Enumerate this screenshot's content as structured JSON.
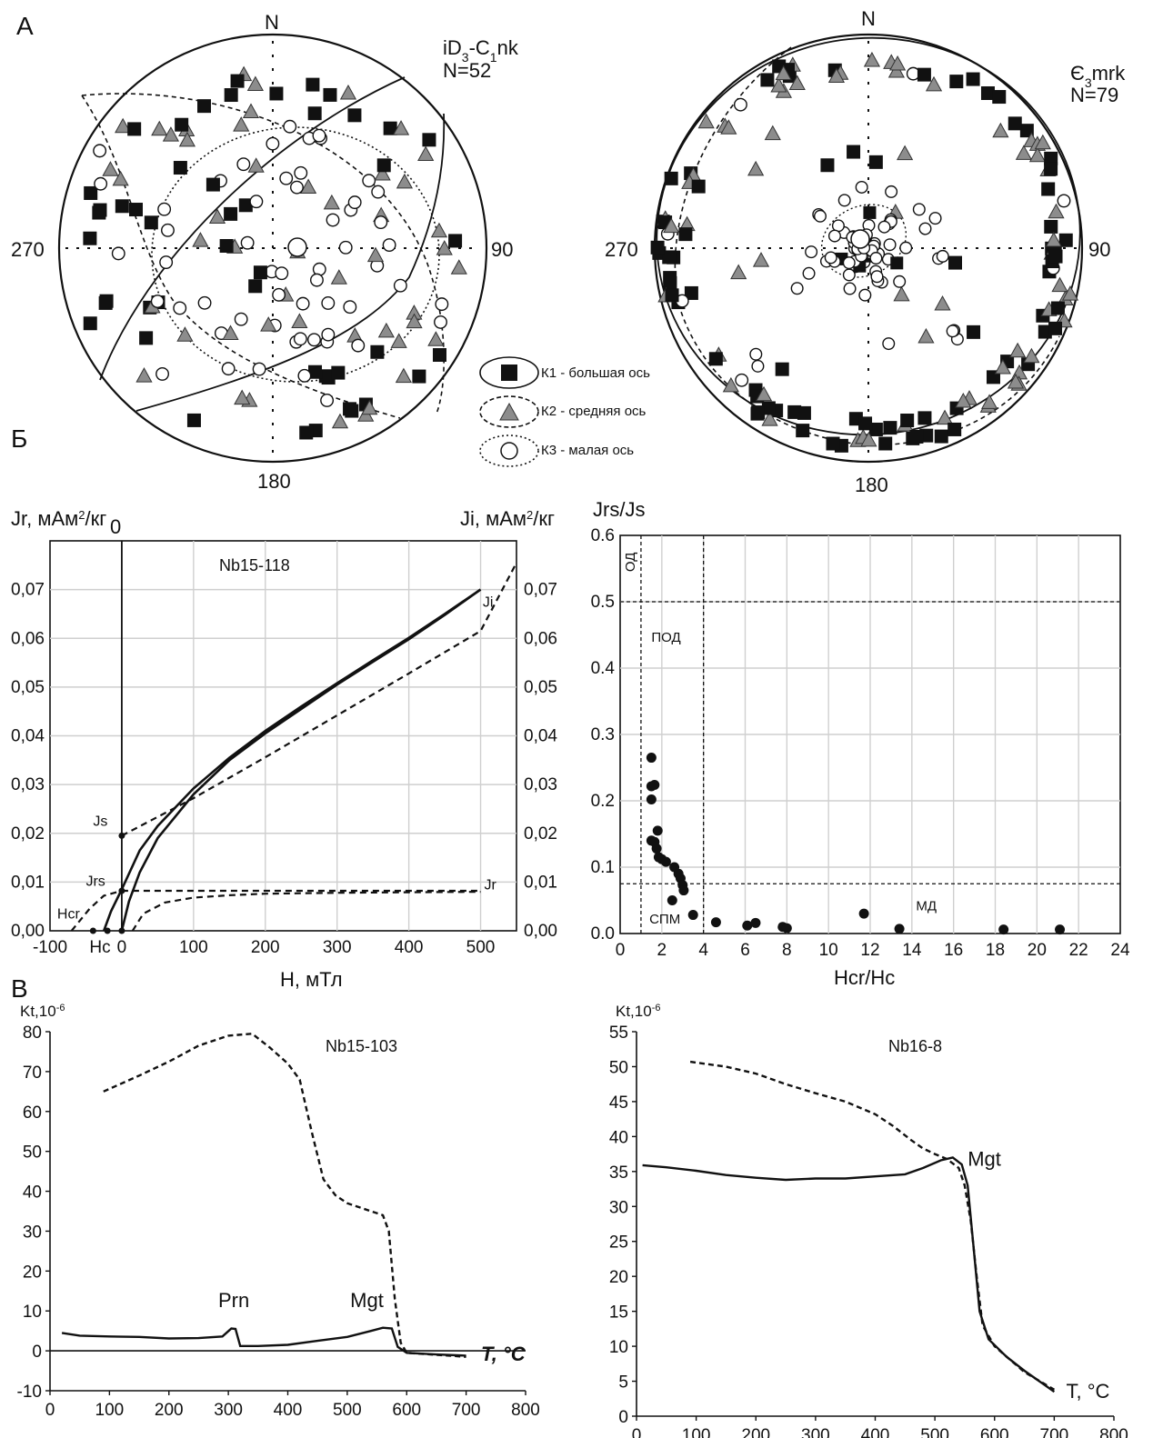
{
  "section_labels": {
    "a": "А",
    "b": "Б",
    "c": "В"
  },
  "stereonets": {
    "north": "N",
    "deg_90": "90",
    "deg_180": "180",
    "deg_270": "270",
    "left": {
      "unit_html": "iD<tspan baseline-shift='sub' font-size='14'>3</tspan>-C<tspan baseline-shift='sub' font-size='14'>1</tspan>nk",
      "unit": "iD3-C1nk",
      "n": "N=52"
    },
    "right": {
      "unit_html": "Є<tspan baseline-shift='sub' font-size='14'>3</tspan>mrk",
      "unit": "Є3mrk",
      "n": "N=79"
    },
    "legend": [
      {
        "label": "К1 - большая ось",
        "symbol": "square",
        "ellipse": "solid"
      },
      {
        "label": "К2 - средняя ось",
        "symbol": "triangle",
        "ellipse": "dashed"
      },
      {
        "label": "К3 - малая ось",
        "symbol": "circle",
        "ellipse": "dotted"
      }
    ]
  },
  "chart_data": [
    {
      "type": "line",
      "sample": "Nb15-118",
      "ylabel_left": "Jr, мАм²/кг",
      "ylabel_right": "Ji, мАм²/кг",
      "xlabel": "H, мТл",
      "xlim": [
        -100,
        550
      ],
      "ylim": [
        0,
        0.08
      ],
      "x_ticks": [
        "-100",
        "0",
        "100",
        "200",
        "300",
        "400",
        "500"
      ],
      "y_ticks": [
        "0,00",
        "0,01",
        "0,02",
        "0,03",
        "0,04",
        "0,05",
        "0,06",
        "0,07"
      ],
      "grid": true,
      "annotations": {
        "js": "Js",
        "jrs": "Jrs",
        "hcr": "Hcr",
        "hc": "Hc",
        "ji": "Ji",
        "jr": "Jr",
        "top_zero": "0"
      },
      "series": [
        {
          "name": "Ji",
          "style": "solid",
          "points": [
            [
              0,
              0
            ],
            [
              10,
              0.006
            ],
            [
              25,
              0.012
            ],
            [
              50,
              0.019
            ],
            [
              100,
              0.028
            ],
            [
              150,
              0.035
            ],
            [
              200,
              0.0405
            ],
            [
              250,
              0.0455
            ],
            [
              300,
              0.0505
            ],
            [
              350,
              0.0552
            ],
            [
              400,
              0.0598
            ],
            [
              450,
              0.0648
            ],
            [
              500,
              0.07
            ]
          ]
        },
        {
          "name": "",
          "style": "solid",
          "points": [
            [
              -25,
              0
            ],
            [
              -15,
              0.004
            ],
            [
              0,
              0.0085
            ],
            [
              25,
              0.0165
            ],
            [
              50,
              0.0215
            ],
            [
              100,
              0.0292
            ],
            [
              150,
              0.0355
            ],
            [
              200,
              0.041
            ],
            [
              250,
              0.046
            ],
            [
              300,
              0.0508
            ],
            [
              350,
              0.0555
            ],
            [
              400,
              0.0601
            ],
            [
              450,
              0.065
            ],
            [
              500,
              0.07
            ]
          ]
        },
        {
          "name": "",
          "style": "dashed",
          "points": [
            [
              0,
              0.0195
            ],
            [
              100,
              0.0272
            ],
            [
              200,
              0.0356
            ],
            [
              300,
              0.0442
            ],
            [
              400,
              0.0528
            ],
            [
              500,
              0.0615
            ],
            [
              550,
              0.0755
            ]
          ]
        },
        {
          "name": "Jr",
          "style": "dashed",
          "points": [
            [
              0,
              0.0082
            ],
            [
              100,
              0.0082
            ],
            [
              200,
              0.0082
            ],
            [
              300,
              0.0082
            ],
            [
              400,
              0.0082
            ],
            [
              500,
              0.0082
            ]
          ]
        },
        {
          "name": "",
          "style": "dashed",
          "points": [
            [
              15,
              0
            ],
            [
              30,
              0.0035
            ],
            [
              60,
              0.0058
            ],
            [
              100,
              0.0068
            ],
            [
              150,
              0.0073
            ],
            [
              200,
              0.0076
            ],
            [
              300,
              0.0078
            ],
            [
              400,
              0.0079
            ],
            [
              500,
              0.008
            ]
          ]
        },
        {
          "name": "",
          "style": "dashed",
          "points": [
            [
              -70,
              0
            ],
            [
              -45,
              0.0045
            ],
            [
              -25,
              0.0072
            ],
            [
              0,
              0.0082
            ]
          ]
        }
      ],
      "marked_points": [
        [
          0,
          0.0195
        ],
        [
          0,
          0.0082
        ],
        [
          -40,
          0
        ],
        [
          -20,
          0
        ],
        [
          0,
          0
        ]
      ]
    },
    {
      "type": "scatter",
      "xlabel": "Hcr/Hc",
      "ylabel": "Jrs/Js",
      "xlim": [
        0,
        24
      ],
      "ylim": [
        0,
        0.6
      ],
      "x_ticks": [
        "0",
        "2",
        "4",
        "6",
        "8",
        "10",
        "12",
        "14",
        "16",
        "18",
        "20",
        "22",
        "24"
      ],
      "y_ticks": [
        "0.0",
        "0.1",
        "0.2",
        "0.3",
        "0.4",
        "0.5",
        "0.6"
      ],
      "grid": true,
      "regions": {
        "sd": "ОД",
        "psd": "ПОД",
        "spm": "СПМ",
        "md": "МД"
      },
      "boundaries": {
        "x": [
          1,
          4
        ],
        "y": [
          0.5,
          0.075
        ]
      },
      "points": [
        [
          1.5,
          0.265
        ],
        [
          1.5,
          0.222
        ],
        [
          1.65,
          0.224
        ],
        [
          1.5,
          0.202
        ],
        [
          1.8,
          0.155
        ],
        [
          1.5,
          0.14
        ],
        [
          1.65,
          0.138
        ],
        [
          1.75,
          0.128
        ],
        [
          1.85,
          0.115
        ],
        [
          2.0,
          0.112
        ],
        [
          2.2,
          0.108
        ],
        [
          2.6,
          0.1
        ],
        [
          2.8,
          0.09
        ],
        [
          2.9,
          0.083
        ],
        [
          3.0,
          0.073
        ],
        [
          3.05,
          0.065
        ],
        [
          2.5,
          0.05
        ],
        [
          3.5,
          0.028
        ],
        [
          4.6,
          0.017
        ],
        [
          6.1,
          0.012
        ],
        [
          6.5,
          0.016
        ],
        [
          7.8,
          0.01
        ],
        [
          8.0,
          0.008
        ],
        [
          11.7,
          0.03
        ],
        [
          13.4,
          0.007
        ],
        [
          18.4,
          0.006
        ],
        [
          21.1,
          0.006
        ]
      ]
    },
    {
      "type": "line",
      "sample": "Nb15-103",
      "ylabel": "Kt,10⁻⁶",
      "xlabel": "T, °C",
      "xlim": [
        0,
        800
      ],
      "ylim": [
        -10,
        80
      ],
      "x_ticks": [
        "0",
        "100",
        "200",
        "300",
        "400",
        "500",
        "600",
        "700",
        "800"
      ],
      "y_ticks": [
        "-10",
        "0",
        "10",
        "20",
        "30",
        "40",
        "50",
        "60",
        "70",
        "80"
      ],
      "annotations": {
        "prn": "Prn",
        "mgt": "Mgt"
      },
      "series": [
        {
          "name": "",
          "style": "dashed",
          "points": [
            [
              90,
              65
            ],
            [
              150,
              69
            ],
            [
              200,
              72.5
            ],
            [
              250,
              76.5
            ],
            [
              300,
              79
            ],
            [
              340,
              79.5
            ],
            [
              370,
              76
            ],
            [
              400,
              72
            ],
            [
              420,
              68
            ],
            [
              440,
              55
            ],
            [
              460,
              43
            ],
            [
              480,
              39
            ],
            [
              500,
              37
            ],
            [
              540,
              35
            ],
            [
              560,
              34
            ],
            [
              570,
              30
            ],
            [
              580,
              13
            ],
            [
              590,
              2
            ],
            [
              600,
              -0.5
            ],
            [
              650,
              -1
            ],
            [
              700,
              -1.5
            ]
          ]
        },
        {
          "name": "",
          "style": "solid",
          "points": [
            [
              20,
              4.5
            ],
            [
              50,
              3.8
            ],
            [
              100,
              3.6
            ],
            [
              150,
              3.5
            ],
            [
              200,
              3.1
            ],
            [
              250,
              3.2
            ],
            [
              290,
              3.6
            ],
            [
              305,
              5.6
            ],
            [
              312,
              5.5
            ],
            [
              320,
              1.2
            ],
            [
              350,
              1.2
            ],
            [
              400,
              1.5
            ],
            [
              450,
              2.5
            ],
            [
              500,
              3.5
            ],
            [
              540,
              5
            ],
            [
              560,
              5.8
            ],
            [
              575,
              5.6
            ],
            [
              585,
              1
            ],
            [
              600,
              -0.5
            ],
            [
              650,
              -0.9
            ],
            [
              700,
              -1.2
            ]
          ]
        }
      ]
    },
    {
      "type": "line",
      "sample": "Nb16-8",
      "ylabel": "Kt,10⁻⁶",
      "xlabel": "T, °C",
      "xlim": [
        0,
        800
      ],
      "ylim": [
        0,
        55
      ],
      "x_ticks": [
        "0",
        "100",
        "200",
        "300",
        "400",
        "500",
        "600",
        "700",
        "800"
      ],
      "y_ticks": [
        "0",
        "5",
        "10",
        "15",
        "20",
        "25",
        "30",
        "35",
        "40",
        "45",
        "50",
        "55"
      ],
      "annotations": {
        "mgt": "Mgt"
      },
      "series": [
        {
          "name": "",
          "style": "dashed",
          "points": [
            [
              90,
              50.7
            ],
            [
              150,
              50
            ],
            [
              200,
              49
            ],
            [
              250,
              47.5
            ],
            [
              300,
              46.2
            ],
            [
              350,
              45
            ],
            [
              400,
              43.2
            ],
            [
              430,
              41.5
            ],
            [
              460,
              39.5
            ],
            [
              480,
              38.3
            ],
            [
              500,
              37.5
            ],
            [
              520,
              36.8
            ],
            [
              540,
              35.5
            ],
            [
              550,
              33
            ],
            [
              560,
              28
            ],
            [
              570,
              20
            ],
            [
              580,
              13
            ],
            [
              600,
              10
            ],
            [
              650,
              6.3
            ],
            [
              700,
              3.8
            ]
          ]
        },
        {
          "name": "",
          "style": "solid",
          "points": [
            [
              10,
              35.9
            ],
            [
              50,
              35.6
            ],
            [
              100,
              35.1
            ],
            [
              150,
              34.5
            ],
            [
              200,
              34.1
            ],
            [
              250,
              33.8
            ],
            [
              300,
              34
            ],
            [
              350,
              34
            ],
            [
              400,
              34.3
            ],
            [
              450,
              34.6
            ],
            [
              480,
              35.5
            ],
            [
              510,
              36.6
            ],
            [
              530,
              37
            ],
            [
              545,
              36
            ],
            [
              555,
              33
            ],
            [
              565,
              24
            ],
            [
              575,
              15
            ],
            [
              590,
              11
            ],
            [
              620,
              8.5
            ],
            [
              650,
              6.5
            ],
            [
              700,
              3.5
            ]
          ]
        }
      ]
    }
  ]
}
